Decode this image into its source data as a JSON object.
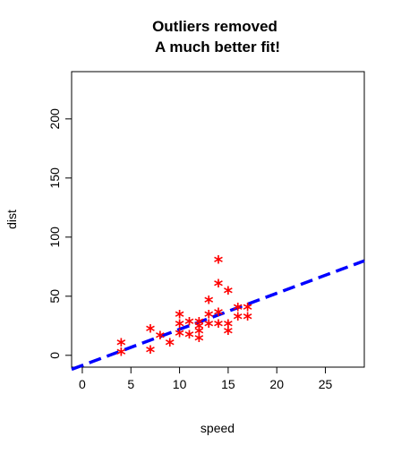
{
  "chart_data": {
    "type": "scatter",
    "title_lines": [
      "Outliers removed",
      "A much better fit!"
    ],
    "xlabel": "speed",
    "ylabel": "dist",
    "xlim": [
      -1.1,
      29
    ],
    "ylim": [
      -10,
      240
    ],
    "x_ticks": [
      0,
      5,
      10,
      15,
      20,
      25
    ],
    "y_ticks": [
      0,
      50,
      100,
      150,
      200
    ],
    "point_marker": "*",
    "point_color": "#ff0000",
    "line_color": "#0000ff",
    "fit_line": {
      "intercept": -8.5,
      "slope": 3.05
    },
    "points": [
      {
        "x": 4,
        "y": 2
      },
      {
        "x": 4,
        "y": 10
      },
      {
        "x": 7,
        "y": 4
      },
      {
        "x": 7,
        "y": 22
      },
      {
        "x": 8,
        "y": 16
      },
      {
        "x": 9,
        "y": 10
      },
      {
        "x": 10,
        "y": 18
      },
      {
        "x": 10,
        "y": 26
      },
      {
        "x": 10,
        "y": 34
      },
      {
        "x": 11,
        "y": 17
      },
      {
        "x": 11,
        "y": 28
      },
      {
        "x": 12,
        "y": 14
      },
      {
        "x": 12,
        "y": 20
      },
      {
        "x": 12,
        "y": 24
      },
      {
        "x": 12,
        "y": 28
      },
      {
        "x": 13,
        "y": 26
      },
      {
        "x": 13,
        "y": 34
      },
      {
        "x": 13,
        "y": 46
      },
      {
        "x": 14,
        "y": 26
      },
      {
        "x": 14,
        "y": 36
      },
      {
        "x": 14,
        "y": 60
      },
      {
        "x": 14,
        "y": 80
      },
      {
        "x": 15,
        "y": 20
      },
      {
        "x": 15,
        "y": 26
      },
      {
        "x": 15,
        "y": 54
      },
      {
        "x": 16,
        "y": 32
      },
      {
        "x": 16,
        "y": 40
      },
      {
        "x": 17,
        "y": 32
      },
      {
        "x": 17,
        "y": 40
      }
    ]
  }
}
